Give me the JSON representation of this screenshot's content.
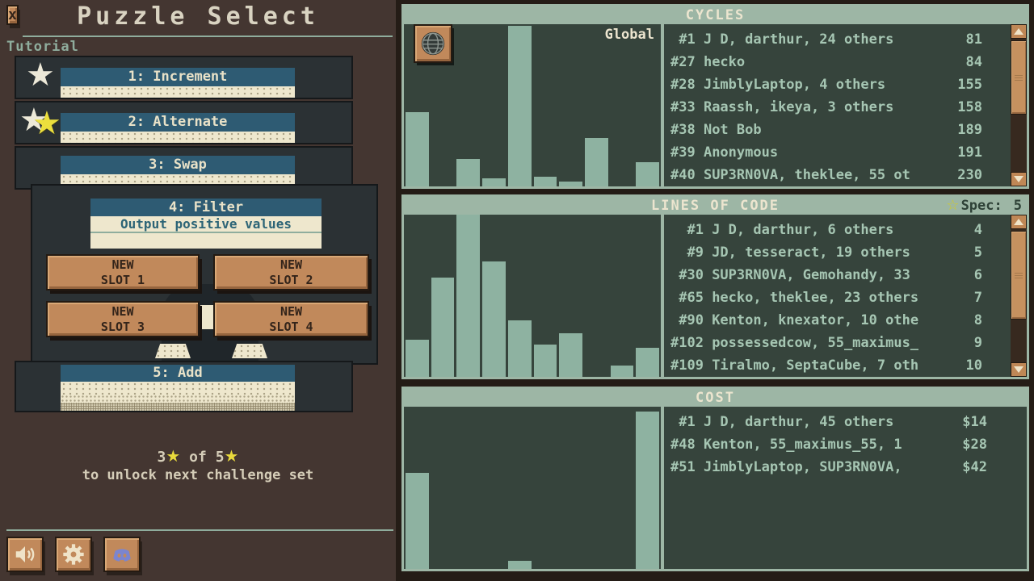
{
  "left_panel": {
    "window_title": "Puzzle Select",
    "close_label": "x",
    "section_label": "Tutorial",
    "puzzles": [
      {
        "label": "1: Increment",
        "stars_earned": 1
      },
      {
        "label": "2: Alternate",
        "stars_earned": 2
      },
      {
        "label": "3: Swap",
        "stars_earned": 0
      },
      {
        "label": "4: Filter",
        "stars_earned": 0,
        "description": "Output positive values",
        "slots": [
          {
            "line1": "NEW",
            "line2": "SLOT 1"
          },
          {
            "line1": "NEW",
            "line2": "SLOT 2"
          },
          {
            "line1": "NEW",
            "line2": "SLOT 3"
          },
          {
            "line1": "NEW",
            "line2": "SLOT 4"
          }
        ]
      },
      {
        "label": "5: Add",
        "stars_earned": 0
      }
    ],
    "progress": {
      "current": "3",
      "separator": "of",
      "total": "5",
      "unlock_text": "to unlock next challenge set"
    },
    "footer_icons": [
      "sound",
      "settings",
      "discord"
    ]
  },
  "leaderboards": {
    "scope_label": "Global",
    "panels": [
      {
        "title": "CYCLES",
        "entries": [
          {
            "rank": " #1",
            "names": "J D, darthur, 24 others",
            "value": "81"
          },
          {
            "rank": "#27",
            "names": "hecko",
            "value": "84"
          },
          {
            "rank": "#28",
            "names": "JimblyLaptop, 4 others",
            "value": "155"
          },
          {
            "rank": "#33",
            "names": "Raassh, ikeya, 3 others",
            "value": "158"
          },
          {
            "rank": "#38",
            "names": "Not Bob",
            "value": "189"
          },
          {
            "rank": "#39",
            "names": "Anonymous",
            "value": "191"
          },
          {
            "rank": "#40",
            "names": "SUP3RN0VA, theklee, 55 ot",
            "value": "230"
          }
        ]
      },
      {
        "title": "LINES OF CODE",
        "spec_label": "Spec:",
        "spec_value": "5",
        "entries": [
          {
            "rank": "  #1",
            "names": "J D, darthur, 6 others",
            "value": "4"
          },
          {
            "rank": "  #9",
            "names": "JD, tesseract, 19 others",
            "value": "5"
          },
          {
            "rank": " #30",
            "names": "SUP3RN0VA, Gemohandy, 33",
            "value": "6"
          },
          {
            "rank": " #65",
            "names": "hecko, theklee, 23 others",
            "value": "7"
          },
          {
            "rank": " #90",
            "names": "Kenton, knexator, 10 othe",
            "value": "8"
          },
          {
            "rank": "#102",
            "names": "possessedcow, 55_maximus_",
            "value": "9"
          },
          {
            "rank": "#109",
            "names": "Tiralmo, SeptaCube, 7 oth",
            "value": "10"
          }
        ]
      },
      {
        "title": "COST",
        "entries": [
          {
            "rank": " #1",
            "names": "J D, darthur, 45 others",
            "value": "$14"
          },
          {
            "rank": "#48",
            "names": "Kenton, 55_maximus_55, 1",
            "value": "$28"
          },
          {
            "rank": "#51",
            "names": "JimblyLaptop, SUP3RN0VA,",
            "value": "$42"
          }
        ]
      }
    ]
  },
  "chart_data": [
    {
      "type": "bar",
      "title": "CYCLES score distribution histogram",
      "xlabel": "",
      "ylabel": "",
      "note": "unlabeled histogram; values are relative bin heights 0-1",
      "values": [
        0.46,
        0,
        0.17,
        0.05,
        0.99,
        0.06,
        0.03,
        0.3,
        0,
        0.15
      ]
    },
    {
      "type": "bar",
      "title": "LINES OF CODE score distribution histogram",
      "xlabel": "",
      "ylabel": "",
      "note": "unlabeled histogram; values are relative bin heights 0-1",
      "values": [
        0.23,
        0.61,
        1.0,
        0.71,
        0.35,
        0.2,
        0.27,
        0,
        0.07,
        0.18
      ]
    },
    {
      "type": "bar",
      "title": "COST score distribution histogram",
      "xlabel": "",
      "ylabel": "",
      "note": "unlabeled histogram; values are relative bin heights 0-1",
      "values": [
        0.59,
        0,
        0,
        0,
        0.05,
        0,
        0,
        0,
        0,
        0.97
      ]
    }
  ],
  "colors": {
    "left_background": "#443631",
    "row_slate": "#2b3134",
    "button_blue": "#2e5b73",
    "cream": "#eee7cd",
    "wood_tan": "#c1895b",
    "sage": "#9db6a5",
    "panel_interior_green": "#36443c",
    "bar_sage": "#8eb2a1",
    "entry_text": "#a6c6b3",
    "star_yellow": "#e8d93c",
    "discord_blurple": "#7b85cf"
  }
}
